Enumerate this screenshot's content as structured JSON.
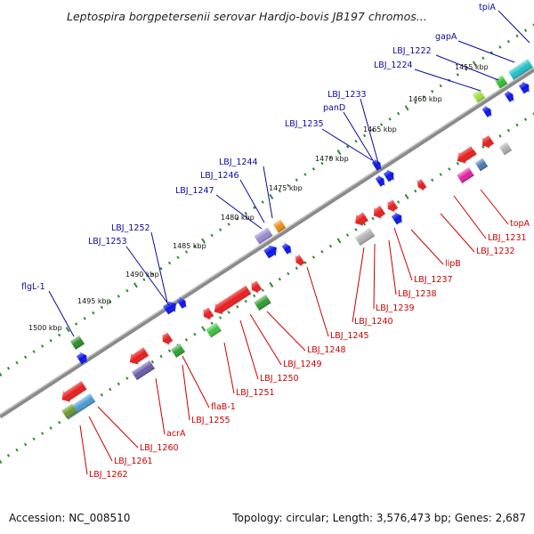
{
  "title": "Leptospira borgpetersenii serovar Hardjo-bovis JB197 chromos...",
  "footer": {
    "accession": "Accession: NC_008510",
    "topology": "Topology: circular; Length: 3,576,473 bp; Genes: 2,687"
  },
  "colors": {
    "backbone": "#8a8a8a",
    "tick": "#2e8b2e",
    "label_plus": "#0a0aa0",
    "label_minus": "#cc0000",
    "gene_blue": "#0a14e6",
    "gene_red": "#e61e1e",
    "gene_green": "#2f9a2f",
    "gene_purple": "#6a5aa8",
    "gene_grey": "#b0b0b0",
    "gene_teal": "#22c0c8",
    "gene_magenta": "#e020a0",
    "gene_orange": "#f08a10"
  },
  "ticks": [
    "1455 kbp",
    "1460 kbp",
    "1465 kbp",
    "1470 kbp",
    "1475 kbp",
    "1480 kbp",
    "1485 kbp",
    "1490 kbp",
    "1495 kbp",
    "1500 kbp"
  ],
  "labels_plus": [
    "tpiA",
    "gapA",
    "LBJ_1222",
    "LBJ_1224",
    "LBJ_1233",
    "panD",
    "LBJ_1235",
    "LBJ_1244",
    "LBJ_1246",
    "LBJ_1247",
    "LBJ_1252",
    "LBJ_1253",
    "flgL-1"
  ],
  "labels_minus": [
    "topA",
    "LBJ_1231",
    "LBJ_1232",
    "lipB",
    "LBJ_1237",
    "LBJ_1238",
    "LBJ_1239",
    "LBJ_1240",
    "LBJ_1245",
    "LBJ_1248",
    "LBJ_1249",
    "LBJ_1250",
    "LBJ_1251",
    "flaB-1",
    "LBJ_1255",
    "acrA",
    "LBJ_1260",
    "LBJ_1261",
    "LBJ_1262"
  ]
}
